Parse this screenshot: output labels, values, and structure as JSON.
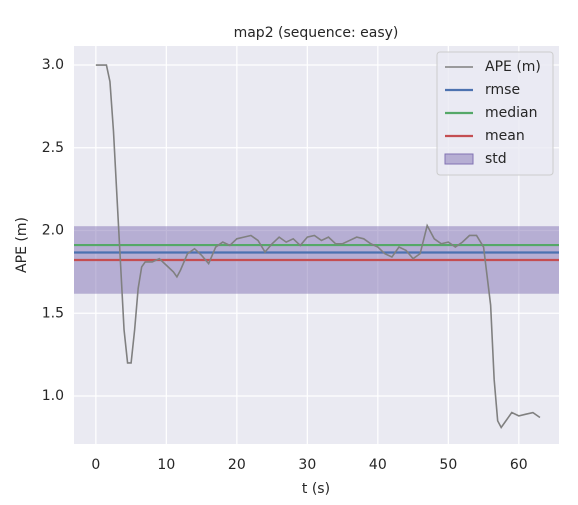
{
  "chart_data": {
    "type": "line",
    "title": "map2 (sequence: easy)",
    "xlabel": "t (s)",
    "ylabel": "APE (m)",
    "xlim": [
      -3.1,
      65.7
    ],
    "ylim": [
      0.71,
      3.115
    ],
    "xticks": [
      0,
      10,
      20,
      30,
      40,
      50,
      60
    ],
    "yticks": [
      {
        "value": 1,
        "label": "1.0"
      },
      {
        "value": 1.5,
        "label": "1.5"
      },
      {
        "value": 2,
        "label": "2.0"
      },
      {
        "value": 2.5,
        "label": "2.5"
      },
      {
        "value": 3,
        "label": "3.0"
      }
    ],
    "grid": true,
    "legend": "upper right",
    "series": [
      {
        "name": "APE (m)",
        "color": "#808080",
        "x": [
          0,
          1,
          1.5,
          2,
          2.5,
          3,
          3.5,
          4,
          4.5,
          5,
          5.5,
          6,
          6.5,
          7,
          8,
          9,
          10,
          11,
          11.5,
          12,
          13,
          14,
          15,
          16,
          17,
          18,
          19,
          20,
          21,
          22,
          23,
          24,
          25,
          26,
          27,
          28,
          29,
          30,
          31,
          32,
          33,
          34,
          35,
          36,
          37,
          38,
          39,
          40,
          41,
          42,
          43,
          44,
          45,
          46,
          47,
          48,
          49,
          50,
          51,
          52,
          53,
          54,
          55,
          56,
          56.5,
          57,
          57.5,
          58,
          59,
          60,
          61,
          62,
          63
        ],
        "values": [
          3.0,
          3.0,
          3.0,
          2.9,
          2.6,
          2.2,
          1.8,
          1.4,
          1.2,
          1.2,
          1.4,
          1.65,
          1.78,
          1.81,
          1.81,
          1.83,
          1.79,
          1.75,
          1.72,
          1.76,
          1.86,
          1.89,
          1.85,
          1.8,
          1.9,
          1.93,
          1.91,
          1.95,
          1.96,
          1.97,
          1.94,
          1.87,
          1.92,
          1.96,
          1.93,
          1.95,
          1.91,
          1.96,
          1.97,
          1.94,
          1.96,
          1.92,
          1.92,
          1.94,
          1.96,
          1.95,
          1.92,
          1.9,
          1.86,
          1.84,
          1.9,
          1.88,
          1.83,
          1.86,
          2.03,
          1.95,
          1.92,
          1.93,
          1.9,
          1.93,
          1.97,
          1.97,
          1.9,
          1.55,
          1.1,
          0.85,
          0.81,
          0.84,
          0.9,
          0.88,
          0.89,
          0.9,
          0.87
        ]
      }
    ],
    "reference_lines": [
      {
        "name": "rmse",
        "color": "#4c72b0",
        "value": 1.867
      },
      {
        "name": "median",
        "color": "#55a868",
        "value": 1.912
      },
      {
        "name": "mean",
        "color": "#c44e52",
        "value": 1.822
      }
    ],
    "std_band": {
      "name": "std",
      "color": "#8172b3",
      "value": 0.204
    }
  }
}
